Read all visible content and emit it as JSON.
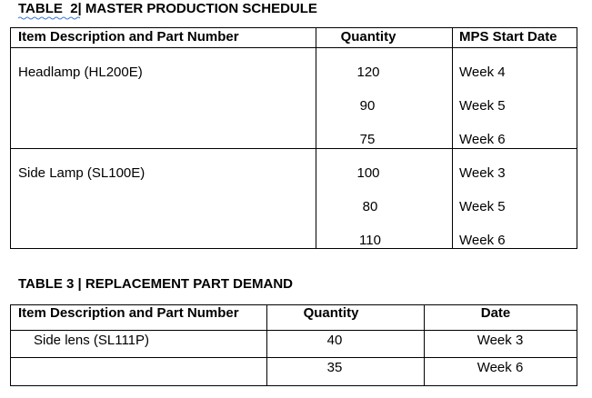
{
  "table2": {
    "title": "TABLE  2| MASTER PRODUCTION SCHEDULE",
    "headers": [
      "Item Description and Part Number",
      "Quantity",
      "MPS Start Date"
    ],
    "rows": [
      {
        "item": "Headlamp (HL200E)",
        "entries": [
          [
            "120",
            "Week 4"
          ],
          [
            "90",
            "Week 5"
          ],
          [
            "75",
            "Week 6"
          ]
        ]
      },
      {
        "item": "Side Lamp (SL100E)",
        "entries": [
          [
            "100",
            "Week 3"
          ],
          [
            "80",
            "Week 5"
          ],
          [
            "110",
            "Week 6"
          ]
        ]
      }
    ]
  },
  "table3": {
    "title": "TABLE 3 | REPLACEMENT PART DEMAND",
    "headers": [
      "Item Description and Part Number",
      "Quantity",
      "Date"
    ],
    "rows": [
      [
        "Side lens (SL111P)",
        "40",
        "Week 3"
      ],
      [
        null,
        "35",
        "Week 6"
      ]
    ]
  }
}
